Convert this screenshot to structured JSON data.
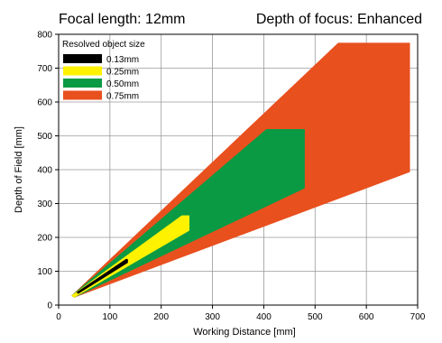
{
  "header": {
    "left": "Focal length: 12mm",
    "right": "Depth of focus: Enhanced"
  },
  "chart_data": {
    "type": "area",
    "xlabel": "Working Distance [mm]",
    "ylabel": "Depth of Field [mm]",
    "xlim": [
      0,
      700
    ],
    "ylim": [
      0,
      800
    ],
    "xticks": [
      0,
      100,
      200,
      300,
      400,
      500,
      600,
      700
    ],
    "yticks": [
      0,
      100,
      200,
      300,
      400,
      500,
      600,
      700,
      800
    ],
    "grid": true,
    "legend": {
      "title": "Resolved object size",
      "placement": "top-left"
    },
    "series": [
      {
        "name": "0.75mm",
        "color": "#E8501E",
        "polygon": [
          [
            25,
            28
          ],
          [
            30,
            22
          ],
          [
            685,
            393
          ],
          [
            685,
            775
          ],
          [
            545,
            775
          ]
        ]
      },
      {
        "name": "0.50mm",
        "color": "#0A9A44",
        "polygon": [
          [
            25,
            28
          ],
          [
            30,
            22
          ],
          [
            480,
            345
          ],
          [
            480,
            520
          ],
          [
            405,
            520
          ]
        ]
      },
      {
        "name": "0.25mm",
        "color": "#FFF200",
        "polygon": [
          [
            25,
            28
          ],
          [
            30,
            22
          ],
          [
            255,
            220
          ],
          [
            255,
            265
          ],
          [
            240,
            265
          ]
        ]
      },
      {
        "name": "0.13mm",
        "color": "#000000",
        "polygon": [
          [
            35,
            38
          ],
          [
            38,
            33
          ],
          [
            135,
            125
          ],
          [
            135,
            135
          ],
          [
            132,
            137
          ]
        ]
      }
    ]
  }
}
